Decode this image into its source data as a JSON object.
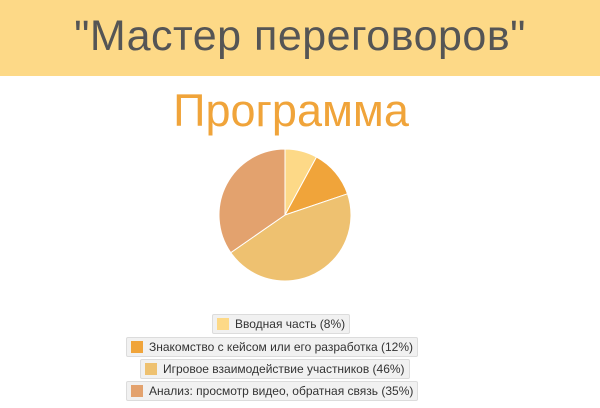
{
  "header": {
    "title": "\"Мастер переговоров\""
  },
  "section": {
    "title": "Программа"
  },
  "chart_data": {
    "type": "pie",
    "slices": [
      {
        "label": "Вводная часть (8%)",
        "value": 8,
        "color": "#fdd987"
      },
      {
        "label": "Знакомство с кейсом или его разработка (12%)",
        "value": 12,
        "color": "#f0a43a"
      },
      {
        "label": "Игровое взаимодействие участников (46%)",
        "value": 46,
        "color": "#eec170"
      },
      {
        "label": "Анализ: просмотр видео, обратная связь (35%)",
        "value": 35,
        "color": "#e3a26e"
      }
    ],
    "legend_position": "bottom"
  }
}
